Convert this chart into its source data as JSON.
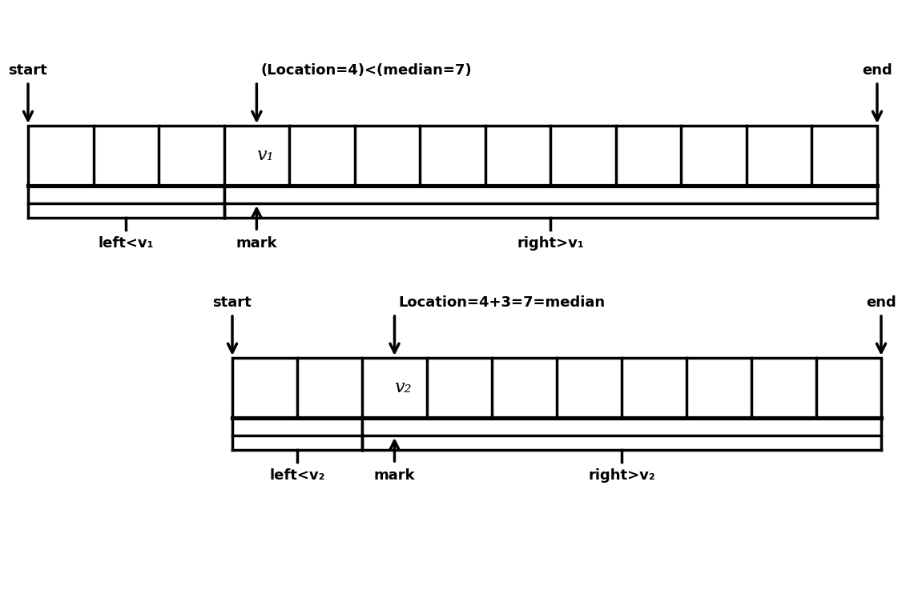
{
  "bg_color": "#ffffff",
  "lw": 2.5,
  "fontsize": 13,
  "diagram1": {
    "num_cells": 13,
    "mark_cell": 3,
    "label_v": "v₁",
    "start_label": "start",
    "end_label": "end",
    "title": "(Location=4)<(median=7)",
    "left_label": "left<v₁",
    "mark_label": "mark",
    "right_label": "right>v₁"
  },
  "diagram2": {
    "num_cells": 10,
    "mark_cell": 2,
    "label_v": "v₂",
    "start_label": "start",
    "end_label": "end",
    "title": "Location=4+3=7=median",
    "left_label": "left<v₂",
    "mark_label": "mark",
    "right_label": "right>v₂"
  }
}
